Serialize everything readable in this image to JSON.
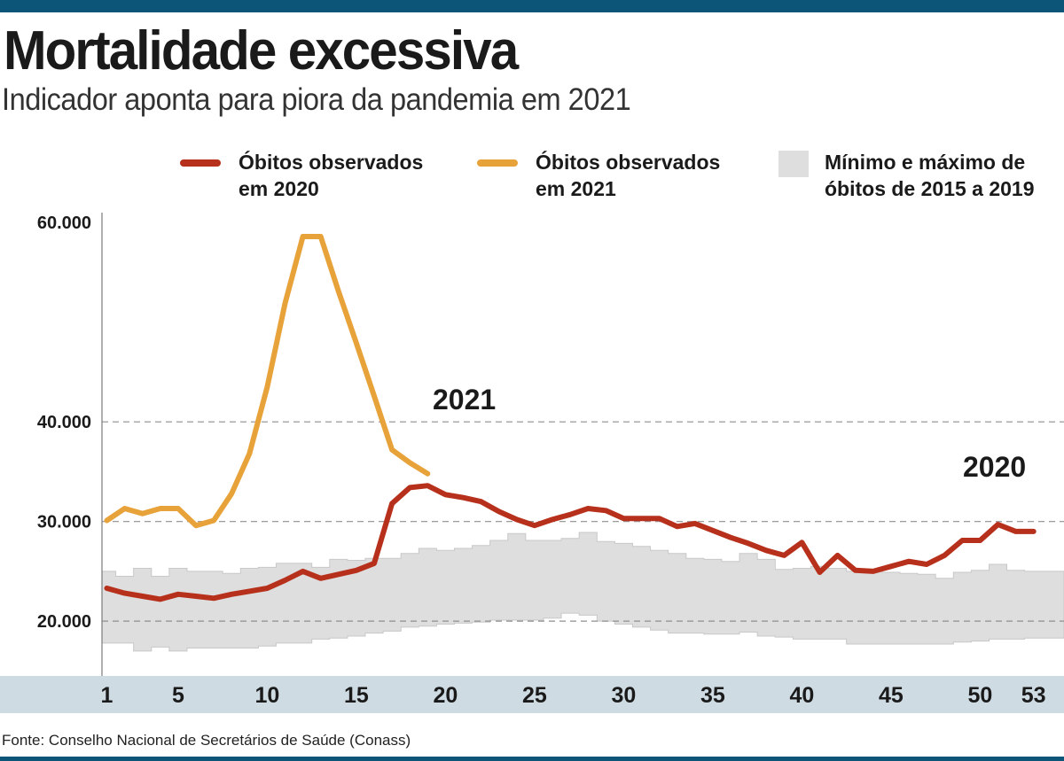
{
  "header": {
    "title": "Mortalidade excessiva",
    "subtitle": "Indicador aponta para piora da pandemia em 2021"
  },
  "legend": {
    "items": [
      {
        "label": "Óbitos observados\nem 2020",
        "color": "#b7301b",
        "kind": "line"
      },
      {
        "label": "Óbitos observados\nem 2021",
        "color": "#e8a23a",
        "kind": "line"
      },
      {
        "label": "Mínimo e máximo de\nóbitos de 2015 a 2019",
        "color": "#dedede",
        "kind": "band"
      }
    ]
  },
  "source": "Fonte: Conselho Nacional de Secretários de Saúde (Conass)",
  "chart_data": {
    "type": "line",
    "title": "Mortalidade excessiva",
    "xlabel": "",
    "ylabel": "",
    "ylim": [
      14500,
      61000
    ],
    "xlim": [
      0.6,
      53.6
    ],
    "yticks": [
      {
        "value": 20000,
        "label": "20.000"
      },
      {
        "value": 30000,
        "label": "30.000"
      },
      {
        "value": 40000,
        "label": "40.000"
      },
      {
        "value": 60000,
        "label": "60.000"
      }
    ],
    "gridlines": [
      20000,
      30000,
      40000
    ],
    "xticks": [
      {
        "value": 1,
        "label": "1"
      },
      {
        "value": 5,
        "label": "5"
      },
      {
        "value": 10,
        "label": "10"
      },
      {
        "value": 15,
        "label": "15"
      },
      {
        "value": 20,
        "label": "20"
      },
      {
        "value": 25,
        "label": "25"
      },
      {
        "value": 30,
        "label": "30"
      },
      {
        "value": 35,
        "label": "35"
      },
      {
        "value": 40,
        "label": "40"
      },
      {
        "value": 45,
        "label": "45"
      },
      {
        "value": 50,
        "label": "50"
      },
      {
        "value": 53,
        "label": "53"
      }
    ],
    "band": {
      "name": "Mínimo e máximo de óbitos de 2015 a 2019",
      "color": "#dedede",
      "x": [
        1,
        2,
        3,
        4,
        5,
        6,
        7,
        8,
        9,
        10,
        11,
        12,
        13,
        14,
        15,
        16,
        17,
        18,
        19,
        20,
        21,
        22,
        23,
        24,
        25,
        26,
        27,
        28,
        29,
        30,
        31,
        32,
        33,
        34,
        35,
        36,
        37,
        38,
        39,
        40,
        41,
        42,
        43,
        44,
        45,
        46,
        47,
        48,
        49,
        50,
        51,
        52,
        53
      ],
      "max": [
        25000,
        24500,
        25300,
        24500,
        25300,
        25000,
        25000,
        24800,
        25300,
        25400,
        25800,
        25800,
        25400,
        26200,
        26100,
        26300,
        26300,
        26800,
        27300,
        27100,
        27300,
        27600,
        28100,
        28800,
        28100,
        28100,
        28300,
        28900,
        28000,
        27800,
        27500,
        27100,
        26800,
        26300,
        26200,
        26000,
        26800,
        26200,
        25200,
        25300,
        25500,
        25300,
        25000,
        25000,
        24900,
        24800,
        24700,
        24300,
        24900,
        25100,
        25700,
        25100,
        25000
      ],
      "min": [
        17800,
        17800,
        17000,
        17400,
        17000,
        17300,
        17300,
        17300,
        17300,
        17500,
        17800,
        17800,
        18200,
        18300,
        18500,
        18800,
        19000,
        19400,
        19500,
        19700,
        19800,
        19900,
        20100,
        20100,
        20100,
        20300,
        20800,
        20600,
        20000,
        19700,
        19400,
        19100,
        18800,
        18800,
        18700,
        18700,
        18900,
        18500,
        18400,
        18200,
        18200,
        18200,
        17700,
        17700,
        17700,
        17700,
        17700,
        17700,
        17900,
        18000,
        18200,
        18200,
        18300
      ]
    },
    "series": [
      {
        "name": "Óbitos observados em 2020",
        "label": "2020",
        "color": "#b7301b",
        "x": [
          1,
          2,
          3,
          4,
          5,
          6,
          7,
          8,
          9,
          10,
          11,
          12,
          13,
          14,
          15,
          16,
          17,
          18,
          19,
          20,
          21,
          22,
          23,
          24,
          25,
          26,
          27,
          28,
          29,
          30,
          31,
          32,
          33,
          34,
          35,
          36,
          37,
          38,
          39,
          40,
          41,
          42,
          43,
          44,
          45,
          46,
          47,
          48,
          49,
          50,
          51,
          52,
          53
        ],
        "values": [
          23300,
          22800,
          22500,
          22200,
          22700,
          22500,
          22300,
          22700,
          23000,
          23300,
          24100,
          25000,
          24300,
          24700,
          25100,
          25800,
          31800,
          33400,
          33600,
          32700,
          32400,
          32000,
          31000,
          30200,
          29600,
          30200,
          30700,
          31300,
          31100,
          30300,
          30300,
          30300,
          29500,
          29800,
          29100,
          28400,
          27800,
          27100,
          26600,
          27900,
          24900,
          26600,
          25100,
          25000,
          25500,
          26000,
          25700,
          26600,
          28100,
          28100,
          29700,
          29000,
          29000
        ]
      },
      {
        "name": "Óbitos observados em 2021",
        "label": "2021",
        "color": "#e8a23a",
        "x": [
          1,
          2,
          3,
          4,
          5,
          6,
          7,
          8,
          9,
          10,
          11,
          12,
          13,
          14,
          15,
          16,
          17,
          18,
          19
        ],
        "values": [
          30100,
          31300,
          30800,
          31300,
          31300,
          29600,
          30100,
          32800,
          36800,
          43500,
          51900,
          58600,
          58600,
          53100,
          47900,
          42600,
          37200,
          35900,
          34800
        ]
      }
    ]
  }
}
